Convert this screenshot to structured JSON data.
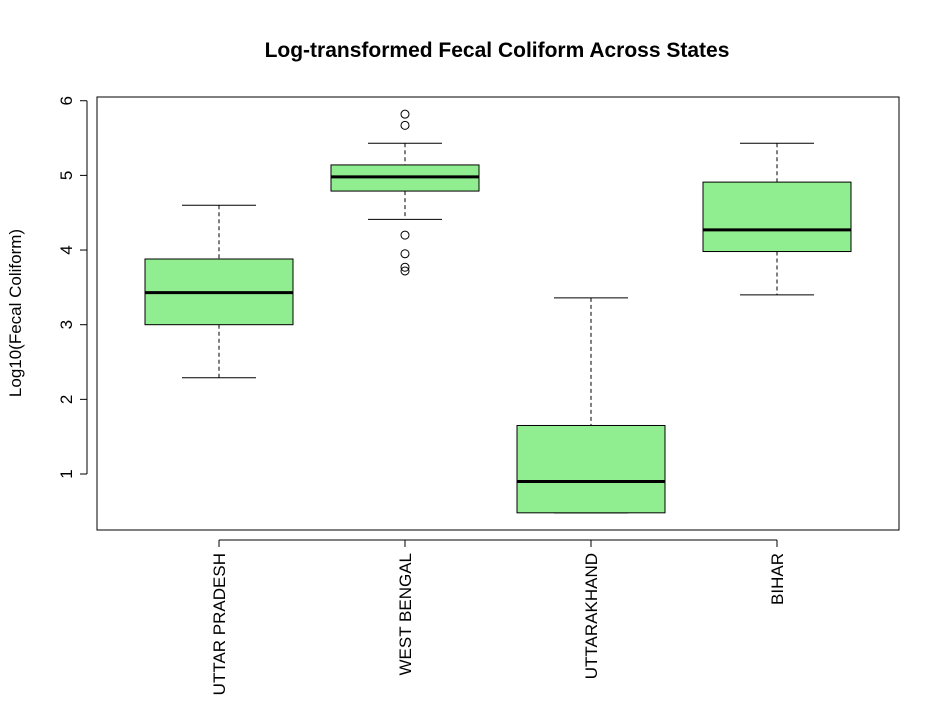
{
  "chart_data": {
    "type": "boxplot",
    "title": "Log-transformed Fecal Coliform Across States",
    "xlabel": "",
    "ylabel": "Log10(Fecal Coliform)",
    "ylim": [
      0.25,
      6.05
    ],
    "yticks": [
      1,
      2,
      3,
      4,
      5,
      6
    ],
    "grid": false,
    "box_color": "#90EE90",
    "categories": [
      "UTTAR PRADESH",
      "WEST BENGAL",
      "UTTARAKHAND",
      "BIHAR"
    ],
    "boxes": [
      {
        "category": "UTTAR PRADESH",
        "whisker_low": 2.29,
        "q1": 3.0,
        "median": 3.43,
        "q3": 3.88,
        "whisker_high": 4.6,
        "outliers": []
      },
      {
        "category": "WEST BENGAL",
        "whisker_low": 4.41,
        "q1": 4.79,
        "median": 4.98,
        "q3": 5.14,
        "whisker_high": 5.43,
        "outliers": [
          5.82,
          5.67,
          4.2,
          3.95,
          3.77,
          3.72
        ]
      },
      {
        "category": "UTTARAKHAND",
        "whisker_low": 0.48,
        "q1": 0.48,
        "median": 0.9,
        "q3": 1.65,
        "whisker_high": 3.36,
        "outliers": []
      },
      {
        "category": "BIHAR",
        "whisker_low": 3.4,
        "q1": 3.98,
        "median": 4.27,
        "q3": 4.91,
        "whisker_high": 5.43,
        "outliers": []
      }
    ]
  }
}
